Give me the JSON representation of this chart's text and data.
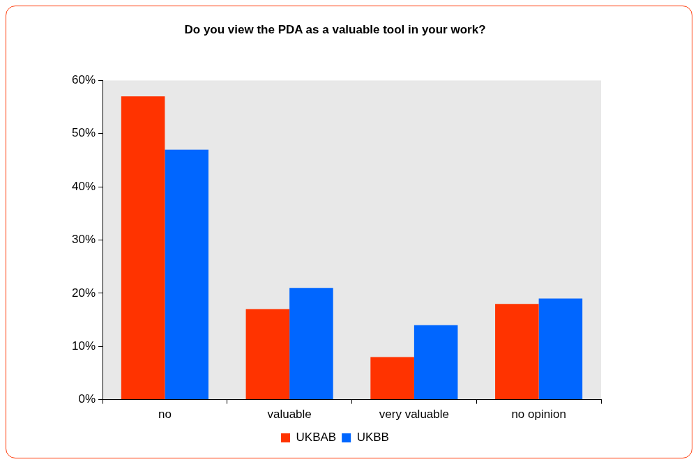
{
  "chart_data": {
    "type": "bar",
    "title": "Do you view the PDA as a valuable tool in your work?",
    "categories": [
      "no",
      "valuable",
      "very valuable",
      "no opinion"
    ],
    "series": [
      {
        "name": "UKBAB",
        "color": "#ff3300",
        "values": [
          57,
          17,
          8,
          18
        ]
      },
      {
        "name": "UKBB",
        "color": "#0066ff",
        "values": [
          47,
          21,
          14,
          19
        ]
      }
    ],
    "ylim": [
      0,
      60
    ],
    "yticks": [
      {
        "value": 0,
        "label": "0%"
      },
      {
        "value": 10,
        "label": "10%"
      },
      {
        "value": 20,
        "label": "20%"
      },
      {
        "value": 30,
        "label": "30%"
      },
      {
        "value": 40,
        "label": "40%"
      },
      {
        "value": 50,
        "label": "50%"
      },
      {
        "value": 60,
        "label": "60%"
      }
    ],
    "grid": false,
    "legend": "bottom"
  }
}
